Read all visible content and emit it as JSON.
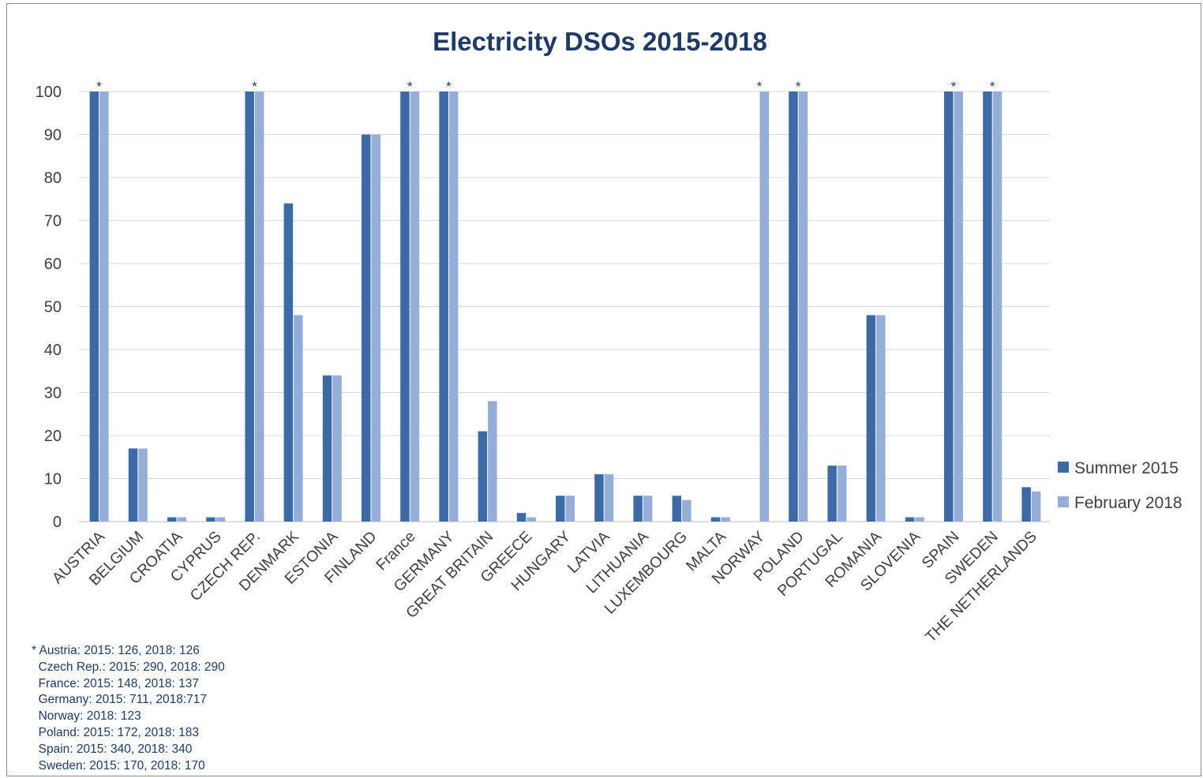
{
  "chart_data": {
    "type": "bar",
    "title": "Electricity DSOs 2015-2018",
    "xlabel": "",
    "ylabel": "",
    "ylim": [
      0,
      100
    ],
    "yticks": [
      0,
      10,
      20,
      30,
      40,
      50,
      60,
      70,
      80,
      90,
      100
    ],
    "grid": true,
    "legend_position": "right",
    "categories": [
      "AUSTRIA",
      "BELGIUM",
      "CROATIA",
      "CYPRUS",
      "CZECH REP.",
      "DENMARK",
      "ESTONIA",
      "FINLAND",
      "France",
      "GERMANY",
      "GREAT BRITAIN",
      "GREECE",
      "HUNGARY",
      "LATVIA",
      "LITHUANIA",
      "LUXEMBOURG",
      "MALTA",
      "NORWAY",
      "POLAND",
      "PORTUGAL",
      "ROMANIA",
      "SLOVENIA",
      "SPAIN",
      "SWEDEN",
      "THE NETHERLANDS"
    ],
    "series": [
      {
        "name": "Summer 2015",
        "color": "#3d6aa6",
        "values": [
          100,
          17,
          1,
          1,
          100,
          74,
          34,
          90,
          100,
          100,
          21,
          2,
          6,
          11,
          6,
          6,
          1,
          0,
          100,
          13,
          48,
          1,
          100,
          100,
          8
        ]
      },
      {
        "name": "February 2018",
        "color": "#95add7",
        "values": [
          100,
          17,
          1,
          1,
          100,
          48,
          34,
          90,
          100,
          100,
          28,
          1,
          6,
          11,
          6,
          5,
          1,
          100,
          100,
          13,
          48,
          1,
          100,
          100,
          7
        ]
      }
    ],
    "asterisk_marker": "*",
    "asterisk_categories": [
      "AUSTRIA",
      "CZECH REP.",
      "France",
      "GERMANY",
      "NORWAY",
      "POLAND",
      "SPAIN",
      "SWEDEN"
    ],
    "footnote": [
      "* Austria: 2015: 126, 2018: 126",
      "  Czech Rep.: 2015: 290, 2018: 290",
      "  France: 2015: 148, 2018: 137",
      "  Germany: 2015: 711, 2018:717",
      "  Norway: 2018: 123",
      "  Poland: 2015: 172, 2018: 183",
      "  Spain: 2015: 340, 2018: 340",
      "  Sweden: 2015: 170, 2018: 170"
    ],
    "colors": {
      "title": "#1f3a66",
      "axis_text": "#404040",
      "grid": "#d9d9d9",
      "axis_line": "#bfbfbf",
      "legend_text": "#404040"
    }
  }
}
